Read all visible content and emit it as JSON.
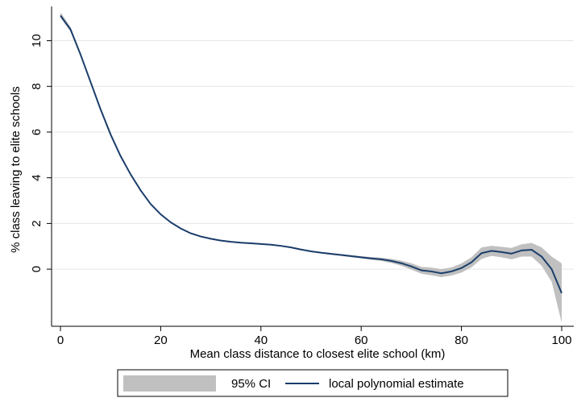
{
  "chart_data": {
    "type": "line",
    "xlabel": "Mean class distance to closest elite school (km)",
    "ylabel": "% class leaving to elite schools",
    "xlim": [
      0,
      100
    ],
    "ylim": [
      -2.5,
      11.5
    ],
    "x_ticks": [
      0,
      20,
      40,
      60,
      80,
      100
    ],
    "y_ticks": [
      0,
      2,
      4,
      6,
      8,
      10
    ],
    "grid": true,
    "legend_position": "bottom",
    "series": [
      {
        "name": "local polynomial estimate",
        "color": "#1a3d6b",
        "x": [
          0,
          2,
          4,
          6,
          8,
          10,
          12,
          14,
          16,
          18,
          20,
          22,
          24,
          26,
          28,
          30,
          32,
          34,
          36,
          38,
          40,
          42,
          44,
          46,
          48,
          50,
          52,
          54,
          56,
          58,
          60,
          62,
          64,
          66,
          68,
          70,
          72,
          74,
          76,
          78,
          80,
          82,
          84,
          86,
          88,
          90,
          92,
          94,
          96,
          98,
          100
        ],
        "y": [
          11.1,
          10.5,
          9.4,
          8.2,
          7.0,
          5.9,
          4.95,
          4.15,
          3.45,
          2.85,
          2.4,
          2.05,
          1.78,
          1.57,
          1.43,
          1.33,
          1.25,
          1.2,
          1.16,
          1.13,
          1.1,
          1.07,
          1.02,
          0.95,
          0.86,
          0.78,
          0.72,
          0.67,
          0.62,
          0.57,
          0.52,
          0.47,
          0.43,
          0.36,
          0.26,
          0.12,
          -0.05,
          -0.1,
          -0.18,
          -0.1,
          0.05,
          0.3,
          0.7,
          0.8,
          0.75,
          0.68,
          0.82,
          0.85,
          0.55,
          0.0,
          -1.05
        ]
      },
      {
        "name": "95% CI",
        "color": "#c0c0c0",
        "x": [
          0,
          2,
          4,
          6,
          8,
          10,
          12,
          14,
          16,
          18,
          20,
          22,
          24,
          26,
          28,
          30,
          32,
          34,
          36,
          38,
          40,
          42,
          44,
          46,
          48,
          50,
          52,
          54,
          56,
          58,
          60,
          62,
          64,
          66,
          68,
          70,
          72,
          74,
          76,
          78,
          80,
          82,
          84,
          86,
          88,
          90,
          92,
          94,
          96,
          98,
          100
        ],
        "lower": [
          11.0,
          10.4,
          9.33,
          8.14,
          6.95,
          5.86,
          4.92,
          4.12,
          3.42,
          2.82,
          2.37,
          2.02,
          1.75,
          1.54,
          1.4,
          1.3,
          1.22,
          1.17,
          1.13,
          1.1,
          1.07,
          1.04,
          0.99,
          0.92,
          0.83,
          0.75,
          0.68,
          0.63,
          0.58,
          0.52,
          0.47,
          0.41,
          0.36,
          0.27,
          0.15,
          -0.02,
          -0.2,
          -0.27,
          -0.35,
          -0.28,
          -0.15,
          0.08,
          0.45,
          0.58,
          0.52,
          0.43,
          0.55,
          0.55,
          0.15,
          -0.55,
          -2.35
        ],
        "upper": [
          11.25,
          10.6,
          9.47,
          8.26,
          7.05,
          5.94,
          4.98,
          4.18,
          3.48,
          2.88,
          2.43,
          2.08,
          1.81,
          1.6,
          1.46,
          1.36,
          1.28,
          1.23,
          1.19,
          1.16,
          1.13,
          1.1,
          1.05,
          0.98,
          0.89,
          0.81,
          0.76,
          0.71,
          0.66,
          0.62,
          0.57,
          0.53,
          0.5,
          0.45,
          0.37,
          0.26,
          0.1,
          0.07,
          0.0,
          0.08,
          0.25,
          0.52,
          0.95,
          1.02,
          0.98,
          0.93,
          1.09,
          1.15,
          0.95,
          0.55,
          0.25
        ]
      }
    ],
    "legend": [
      "95% CI",
      "local polynomial estimate"
    ]
  }
}
